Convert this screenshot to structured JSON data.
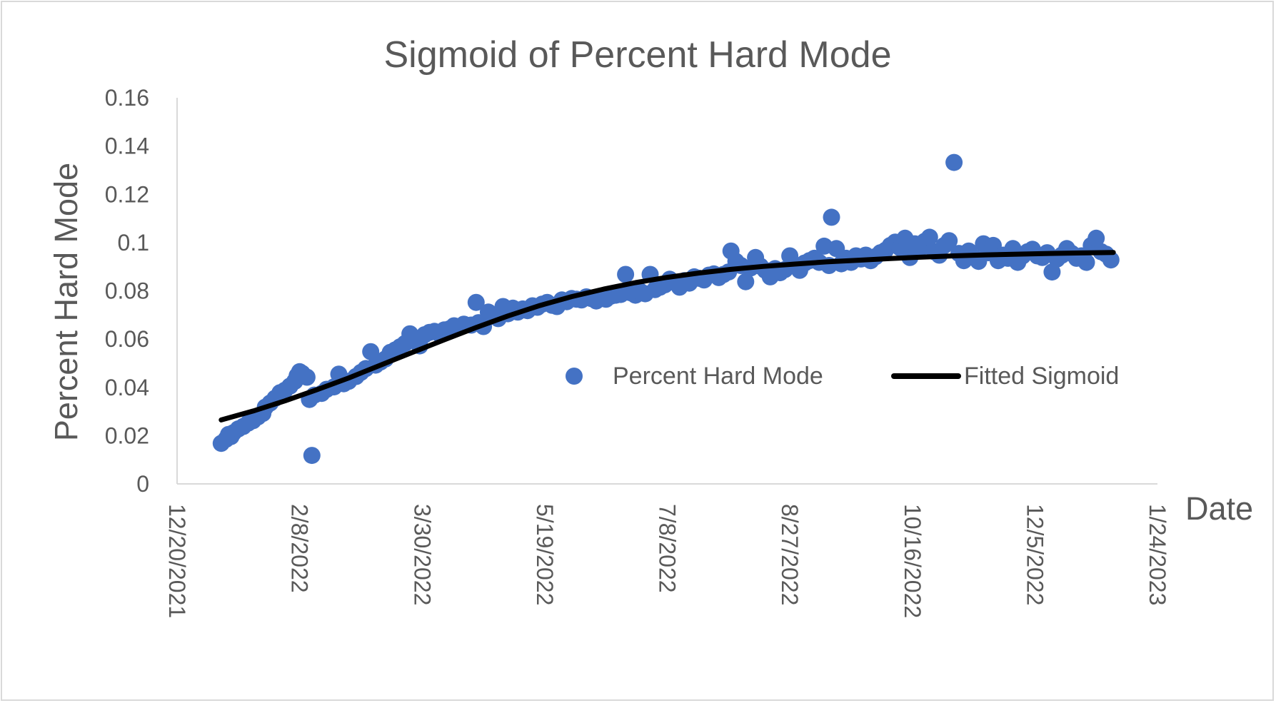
{
  "chart_data": {
    "type": "scatter",
    "title": "Sigmoid of Percent Hard Mode",
    "xlabel": "Date",
    "ylabel": "Percent Hard Mode",
    "x_is_date": true,
    "xlim": [
      "2021-12-20",
      "2023-01-24"
    ],
    "ylim": [
      0,
      0.16
    ],
    "x_ticks": [
      "2021-12-20",
      "2022-02-08",
      "2022-03-30",
      "2022-05-19",
      "2022-07-08",
      "2022-08-27",
      "2022-10-16",
      "2022-12-05",
      "2023-01-24"
    ],
    "x_tick_labels": [
      "12/20/2021",
      "2/8/2022",
      "3/30/2022",
      "5/19/2022",
      "7/8/2022",
      "8/27/2022",
      "10/16/2022",
      "12/5/2022",
      "1/24/2023"
    ],
    "y_ticks": [
      0,
      0.02,
      0.04,
      0.06,
      0.08,
      0.1,
      0.12,
      0.14,
      0.16
    ],
    "y_tick_labels": [
      "0",
      "0.02",
      "0.04",
      "0.06",
      "0.08",
      "0.1",
      "0.12",
      "0.14",
      "0.16"
    ],
    "grid": false,
    "legend": {
      "position": "inside-center-right"
    },
    "series": [
      {
        "name": "Percent Hard Mode",
        "kind": "scatter",
        "color": "#4472c4",
        "points": [
          [
            "2022-01-07",
            0.0168
          ],
          [
            "2022-01-09",
            0.0185
          ],
          [
            "2022-01-10",
            0.0205
          ],
          [
            "2022-01-11",
            0.0196
          ],
          [
            "2022-01-12",
            0.0212
          ],
          [
            "2022-01-14",
            0.0228
          ],
          [
            "2022-01-16",
            0.0238
          ],
          [
            "2022-01-18",
            0.0252
          ],
          [
            "2022-01-20",
            0.0262
          ],
          [
            "2022-01-22",
            0.0278
          ],
          [
            "2022-01-24",
            0.0292
          ],
          [
            "2022-01-25",
            0.0318
          ],
          [
            "2022-01-27",
            0.0335
          ],
          [
            "2022-01-29",
            0.0355
          ],
          [
            "2022-01-31",
            0.0378
          ],
          [
            "2022-02-02",
            0.0388
          ],
          [
            "2022-02-04",
            0.0405
          ],
          [
            "2022-02-06",
            0.0425
          ],
          [
            "2022-02-07",
            0.0448
          ],
          [
            "2022-02-08",
            0.0465
          ],
          [
            "2022-02-09",
            0.0458
          ],
          [
            "2022-02-11",
            0.0442
          ],
          [
            "2022-02-12",
            0.035
          ],
          [
            "2022-02-13",
            0.0118
          ],
          [
            "2022-02-14",
            0.0368
          ],
          [
            "2022-02-17",
            0.0375
          ],
          [
            "2022-02-19",
            0.0392
          ],
          [
            "2022-02-22",
            0.0402
          ],
          [
            "2022-02-24",
            0.0455
          ],
          [
            "2022-02-26",
            0.0415
          ],
          [
            "2022-02-28",
            0.0425
          ],
          [
            "2022-03-03",
            0.0445
          ],
          [
            "2022-03-05",
            0.0462
          ],
          [
            "2022-03-07",
            0.0478
          ],
          [
            "2022-03-09",
            0.0548
          ],
          [
            "2022-03-11",
            0.0492
          ],
          [
            "2022-03-13",
            0.0505
          ],
          [
            "2022-03-15",
            0.0518
          ],
          [
            "2022-03-17",
            0.0545
          ],
          [
            "2022-03-19",
            0.0555
          ],
          [
            "2022-03-21",
            0.0568
          ],
          [
            "2022-03-23",
            0.0582
          ],
          [
            "2022-03-25",
            0.0622
          ],
          [
            "2022-03-27",
            0.0595
          ],
          [
            "2022-03-29",
            0.0572
          ],
          [
            "2022-03-31",
            0.0618
          ],
          [
            "2022-04-02",
            0.0628
          ],
          [
            "2022-04-04",
            0.0632
          ],
          [
            "2022-04-06",
            0.0622
          ],
          [
            "2022-04-08",
            0.0638
          ],
          [
            "2022-04-10",
            0.0642
          ],
          [
            "2022-04-12",
            0.0655
          ],
          [
            "2022-04-14",
            0.0648
          ],
          [
            "2022-04-16",
            0.0662
          ],
          [
            "2022-04-19",
            0.0658
          ],
          [
            "2022-04-21",
            0.0752
          ],
          [
            "2022-04-22",
            0.0668
          ],
          [
            "2022-04-24",
            0.0652
          ],
          [
            "2022-04-26",
            0.0712
          ],
          [
            "2022-04-28",
            0.0698
          ],
          [
            "2022-04-30",
            0.0685
          ],
          [
            "2022-05-02",
            0.0735
          ],
          [
            "2022-05-04",
            0.0705
          ],
          [
            "2022-05-06",
            0.0728
          ],
          [
            "2022-05-08",
            0.0712
          ],
          [
            "2022-05-10",
            0.0725
          ],
          [
            "2022-05-12",
            0.0718
          ],
          [
            "2022-05-14",
            0.0738
          ],
          [
            "2022-05-16",
            0.0732
          ],
          [
            "2022-05-18",
            0.0745
          ],
          [
            "2022-05-20",
            0.0752
          ],
          [
            "2022-05-22",
            0.074
          ],
          [
            "2022-05-24",
            0.0735
          ],
          [
            "2022-05-26",
            0.0762
          ],
          [
            "2022-05-28",
            0.0755
          ],
          [
            "2022-05-30",
            0.0768
          ],
          [
            "2022-06-01",
            0.0765
          ],
          [
            "2022-06-03",
            0.0762
          ],
          [
            "2022-06-05",
            0.0775
          ],
          [
            "2022-06-07",
            0.0768
          ],
          [
            "2022-06-09",
            0.0758
          ],
          [
            "2022-06-11",
            0.0772
          ],
          [
            "2022-06-13",
            0.0765
          ],
          [
            "2022-06-15",
            0.0778
          ],
          [
            "2022-06-17",
            0.0782
          ],
          [
            "2022-06-19",
            0.0785
          ],
          [
            "2022-06-21",
            0.0868
          ],
          [
            "2022-06-23",
            0.0792
          ],
          [
            "2022-06-25",
            0.0782
          ],
          [
            "2022-06-27",
            0.0798
          ],
          [
            "2022-06-29",
            0.0788
          ],
          [
            "2022-07-01",
            0.0868
          ],
          [
            "2022-07-03",
            0.0805
          ],
          [
            "2022-07-05",
            0.0815
          ],
          [
            "2022-07-07",
            0.0825
          ],
          [
            "2022-07-09",
            0.0848
          ],
          [
            "2022-07-11",
            0.0835
          ],
          [
            "2022-07-13",
            0.0815
          ],
          [
            "2022-07-15",
            0.0842
          ],
          [
            "2022-07-17",
            0.0832
          ],
          [
            "2022-07-19",
            0.0858
          ],
          [
            "2022-07-21",
            0.0852
          ],
          [
            "2022-07-23",
            0.0845
          ],
          [
            "2022-07-25",
            0.0865
          ],
          [
            "2022-07-27",
            0.087
          ],
          [
            "2022-07-29",
            0.0855
          ],
          [
            "2022-07-31",
            0.0868
          ],
          [
            "2022-08-02",
            0.0878
          ],
          [
            "2022-08-03",
            0.0965
          ],
          [
            "2022-08-05",
            0.0922
          ],
          [
            "2022-08-07",
            0.0905
          ],
          [
            "2022-08-09",
            0.0838
          ],
          [
            "2022-08-11",
            0.0895
          ],
          [
            "2022-08-13",
            0.0938
          ],
          [
            "2022-08-15",
            0.0902
          ],
          [
            "2022-08-17",
            0.0885
          ],
          [
            "2022-08-19",
            0.0858
          ],
          [
            "2022-08-21",
            0.0892
          ],
          [
            "2022-08-23",
            0.0875
          ],
          [
            "2022-08-25",
            0.0888
          ],
          [
            "2022-08-27",
            0.0945
          ],
          [
            "2022-08-29",
            0.0905
          ],
          [
            "2022-08-31",
            0.0885
          ],
          [
            "2022-09-02",
            0.0915
          ],
          [
            "2022-09-04",
            0.0925
          ],
          [
            "2022-09-06",
            0.0935
          ],
          [
            "2022-09-08",
            0.0918
          ],
          [
            "2022-09-10",
            0.0985
          ],
          [
            "2022-09-12",
            0.0905
          ],
          [
            "2022-09-13",
            0.1105
          ],
          [
            "2022-09-15",
            0.0975
          ],
          [
            "2022-09-17",
            0.0912
          ],
          [
            "2022-09-19",
            0.0935
          ],
          [
            "2022-09-21",
            0.0918
          ],
          [
            "2022-09-23",
            0.0945
          ],
          [
            "2022-09-25",
            0.0932
          ],
          [
            "2022-09-27",
            0.0948
          ],
          [
            "2022-09-29",
            0.0925
          ],
          [
            "2022-10-01",
            0.0942
          ],
          [
            "2022-10-03",
            0.0958
          ],
          [
            "2022-10-05",
            0.0968
          ],
          [
            "2022-10-07",
            0.0988
          ],
          [
            "2022-10-09",
            0.1002
          ],
          [
            "2022-10-11",
            0.0978
          ],
          [
            "2022-10-13",
            0.1018
          ],
          [
            "2022-10-15",
            0.0938
          ],
          [
            "2022-10-17",
            0.0995
          ],
          [
            "2022-10-19",
            0.0975
          ],
          [
            "2022-10-21",
            0.1005
          ],
          [
            "2022-10-23",
            0.1022
          ],
          [
            "2022-10-25",
            0.0962
          ],
          [
            "2022-10-27",
            0.0948
          ],
          [
            "2022-10-29",
            0.0988
          ],
          [
            "2022-10-31",
            0.1008
          ],
          [
            "2022-11-02",
            0.1332
          ],
          [
            "2022-11-04",
            0.0955
          ],
          [
            "2022-11-06",
            0.0925
          ],
          [
            "2022-11-08",
            0.0965
          ],
          [
            "2022-11-10",
            0.0938
          ],
          [
            "2022-11-12",
            0.0922
          ],
          [
            "2022-11-14",
            0.0995
          ],
          [
            "2022-11-16",
            0.0958
          ],
          [
            "2022-11-18",
            0.0988
          ],
          [
            "2022-11-20",
            0.0925
          ],
          [
            "2022-11-22",
            0.0948
          ],
          [
            "2022-11-24",
            0.0935
          ],
          [
            "2022-11-26",
            0.0975
          ],
          [
            "2022-11-28",
            0.0918
          ],
          [
            "2022-11-30",
            0.0945
          ],
          [
            "2022-12-02",
            0.0962
          ],
          [
            "2022-12-04",
            0.0972
          ],
          [
            "2022-12-06",
            0.0945
          ],
          [
            "2022-12-08",
            0.0938
          ],
          [
            "2022-12-10",
            0.0958
          ],
          [
            "2022-12-12",
            0.0878
          ],
          [
            "2022-12-14",
            0.0932
          ],
          [
            "2022-12-16",
            0.0948
          ],
          [
            "2022-12-18",
            0.0975
          ],
          [
            "2022-12-20",
            0.0955
          ],
          [
            "2022-12-22",
            0.0935
          ],
          [
            "2022-12-24",
            0.0945
          ],
          [
            "2022-12-26",
            0.0918
          ],
          [
            "2022-12-28",
            0.0988
          ],
          [
            "2022-12-30",
            0.1018
          ],
          [
            "2023-01-01",
            0.0962
          ],
          [
            "2023-01-03",
            0.0952
          ],
          [
            "2023-01-05",
            0.0928
          ]
        ]
      },
      {
        "name": "Fitted Sigmoid",
        "kind": "line",
        "color": "#000000",
        "points": [
          [
            "2022-01-07",
            0.0265
          ],
          [
            "2022-01-20",
            0.0302
          ],
          [
            "2022-02-02",
            0.0344
          ],
          [
            "2022-02-15",
            0.039
          ],
          [
            "2022-02-28",
            0.0439
          ],
          [
            "2022-03-13",
            0.0492
          ],
          [
            "2022-03-26",
            0.0545
          ],
          [
            "2022-04-08",
            0.0597
          ],
          [
            "2022-04-21",
            0.0648
          ],
          [
            "2022-05-04",
            0.0696
          ],
          [
            "2022-05-17",
            0.0739
          ],
          [
            "2022-05-30",
            0.0776
          ],
          [
            "2022-06-12",
            0.0807
          ],
          [
            "2022-06-25",
            0.0834
          ],
          [
            "2022-07-08",
            0.0856
          ],
          [
            "2022-07-21",
            0.0874
          ],
          [
            "2022-08-03",
            0.0889
          ],
          [
            "2022-08-16",
            0.0901
          ],
          [
            "2022-08-29",
            0.0911
          ],
          [
            "2022-09-11",
            0.092
          ],
          [
            "2022-09-24",
            0.0927
          ],
          [
            "2022-10-07",
            0.0934
          ],
          [
            "2022-10-20",
            0.094
          ],
          [
            "2022-11-02",
            0.0945
          ],
          [
            "2022-11-15",
            0.0949
          ],
          [
            "2022-11-28",
            0.0952
          ],
          [
            "2022-12-11",
            0.0955
          ],
          [
            "2022-12-24",
            0.0957
          ],
          [
            "2023-01-06",
            0.0959
          ]
        ]
      }
    ]
  }
}
